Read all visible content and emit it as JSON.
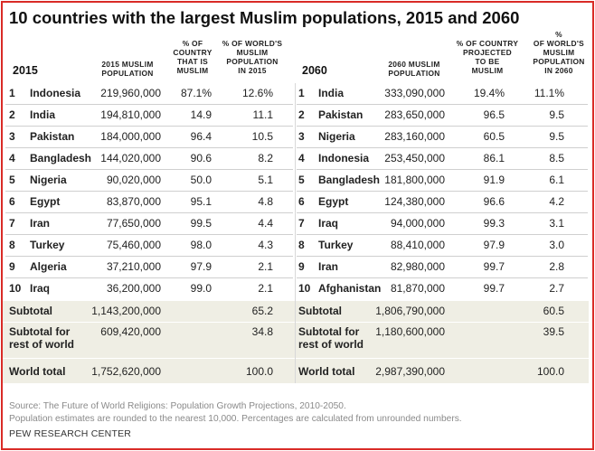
{
  "title": "10 countries with the largest Muslim populations, 2015 and 2060",
  "left": {
    "year": "2015",
    "headers": {
      "pop": [
        "2015 MUSLIM",
        "POPULATION"
      ],
      "pct_country": [
        "% OF",
        "COUNTRY",
        "THAT IS",
        "MUSLIM"
      ],
      "pct_world": [
        "% OF WORLD'S",
        "MUSLIM",
        "POPULATION",
        "IN 2015"
      ]
    },
    "rows": [
      {
        "rank": "1",
        "country": "Indonesia",
        "pop": "219,960,000",
        "pct_country": "87.1%",
        "pct_world": "12.6%"
      },
      {
        "rank": "2",
        "country": "India",
        "pop": "194,810,000",
        "pct_country": "14.9",
        "pct_world": "11.1"
      },
      {
        "rank": "3",
        "country": "Pakistan",
        "pop": "184,000,000",
        "pct_country": "96.4",
        "pct_world": "10.5"
      },
      {
        "rank": "4",
        "country": "Bangladesh",
        "pop": "144,020,000",
        "pct_country": "90.6",
        "pct_world": "8.2"
      },
      {
        "rank": "5",
        "country": "Nigeria",
        "pop": "90,020,000",
        "pct_country": "50.0",
        "pct_world": "5.1"
      },
      {
        "rank": "6",
        "country": "Egypt",
        "pop": "83,870,000",
        "pct_country": "95.1",
        "pct_world": "4.8"
      },
      {
        "rank": "7",
        "country": "Iran",
        "pop": "77,650,000",
        "pct_country": "99.5",
        "pct_world": "4.4"
      },
      {
        "rank": "8",
        "country": "Turkey",
        "pop": "75,460,000",
        "pct_country": "98.0",
        "pct_world": "4.3"
      },
      {
        "rank": "9",
        "country": "Algeria",
        "pop": "37,210,000",
        "pct_country": "97.9",
        "pct_world": "2.1"
      },
      {
        "rank": "10",
        "country": "Iraq",
        "pop": "36,200,000",
        "pct_country": "99.0",
        "pct_world": "2.1"
      }
    ],
    "subtotal": {
      "label": "Subtotal",
      "pop": "1,143,200,000",
      "pct_world": "65.2"
    },
    "rest": {
      "label1": "Subtotal for",
      "label2": "rest of world",
      "pop": "609,420,000",
      "pct_world": "34.8"
    },
    "world": {
      "label": "World total",
      "pop": "1,752,620,000",
      "pct_world": "100.0"
    }
  },
  "right": {
    "year": "2060",
    "headers": {
      "pop": [
        "2060 MUSLIM",
        "POPULATION"
      ],
      "pct_country": [
        "% OF COUNTRY",
        "PROJECTED",
        "TO BE",
        "MUSLIM"
      ],
      "pct_world": [
        "%",
        "OF WORLD'S",
        "MUSLIM",
        "POPULATION",
        "IN 2060"
      ]
    },
    "rows": [
      {
        "rank": "1",
        "country": "India",
        "pop": "333,090,000",
        "pct_country": "19.4%",
        "pct_world": "11.1%"
      },
      {
        "rank": "2",
        "country": "Pakistan",
        "pop": "283,650,000",
        "pct_country": "96.5",
        "pct_world": "9.5"
      },
      {
        "rank": "3",
        "country": "Nigeria",
        "pop": "283,160,000",
        "pct_country": "60.5",
        "pct_world": "9.5"
      },
      {
        "rank": "4",
        "country": "Indonesia",
        "pop": "253,450,000",
        "pct_country": "86.1",
        "pct_world": "8.5"
      },
      {
        "rank": "5",
        "country": "Bangladesh",
        "pop": "181,800,000",
        "pct_country": "91.9",
        "pct_world": "6.1"
      },
      {
        "rank": "6",
        "country": "Egypt",
        "pop": "124,380,000",
        "pct_country": "96.6",
        "pct_world": "4.2"
      },
      {
        "rank": "7",
        "country": "Iraq",
        "pop": "94,000,000",
        "pct_country": "99.3",
        "pct_world": "3.1"
      },
      {
        "rank": "8",
        "country": "Turkey",
        "pop": "88,410,000",
        "pct_country": "97.9",
        "pct_world": "3.0"
      },
      {
        "rank": "9",
        "country": "Iran",
        "pop": "82,980,000",
        "pct_country": "99.7",
        "pct_world": "2.8"
      },
      {
        "rank": "10",
        "country": "Afghanistan",
        "pop": "81,870,000",
        "pct_country": "99.7",
        "pct_world": "2.7"
      }
    ],
    "subtotal": {
      "label": "Subtotal",
      "pop": "1,806,790,000",
      "pct_world": "60.5"
    },
    "rest": {
      "label1": "Subtotal for",
      "label2": "rest of world",
      "pop": "1,180,600,000",
      "pct_world": "39.5"
    },
    "world": {
      "label": "World total",
      "pop": "2,987,390,000",
      "pct_world": "100.0"
    }
  },
  "footer": {
    "source": "Source: The Future of World Religions: Population Growth Projections, 2010-2050.",
    "note": "Population estimates are rounded to the nearest 10,000. Percentages are calculated from unrounded numbers.",
    "brand": "PEW RESEARCH CENTER"
  },
  "colors": {
    "border": "#d92b27",
    "shade": "#efeee4"
  }
}
